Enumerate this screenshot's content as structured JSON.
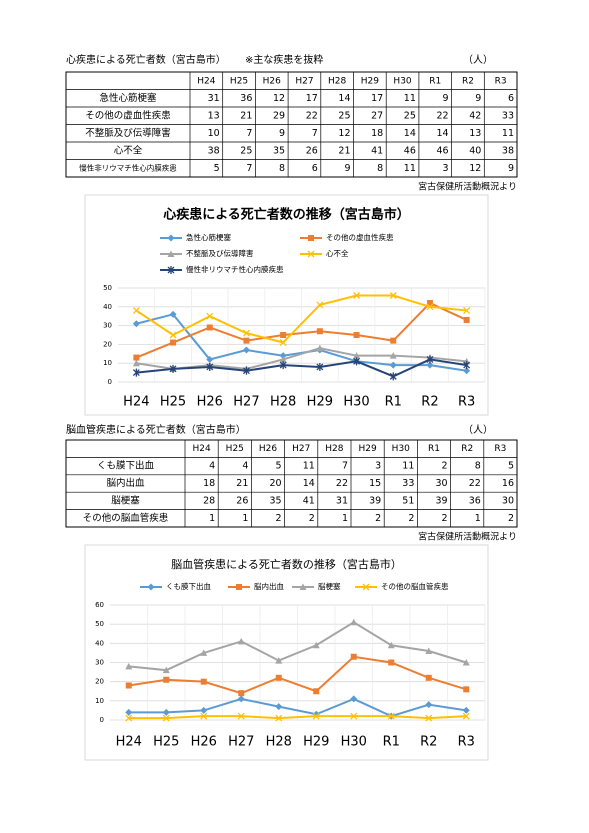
{
  "tables": [
    {
      "title": "心疾患による死亡者数（宮古島市）",
      "note": "※主な疾患を抜粋",
      "unit": "（人）",
      "columns": [
        "H24",
        "H25",
        "H26",
        "H27",
        "H28",
        "H29",
        "H30",
        "R1",
        "R2",
        "R3"
      ],
      "rows": [
        {
          "label": "急性心筋梗塞",
          "values": [
            31,
            36,
            12,
            17,
            14,
            17,
            11,
            9,
            9,
            6
          ]
        },
        {
          "label": "その他の虚血性疾患",
          "values": [
            13,
            21,
            29,
            22,
            25,
            27,
            25,
            22,
            42,
            33
          ]
        },
        {
          "label": "不整脈及び伝導障害",
          "values": [
            10,
            7,
            9,
            7,
            12,
            18,
            14,
            14,
            13,
            11
          ]
        },
        {
          "label": "心不全",
          "values": [
            38,
            25,
            35,
            26,
            21,
            41,
            46,
            46,
            40,
            38
          ]
        },
        {
          "label": "慢性非リウマチ性心内膜疾患",
          "values": [
            5,
            7,
            8,
            6,
            9,
            8,
            11,
            3,
            12,
            9
          ]
        }
      ],
      "source": "宮古保健所活動概況より"
    },
    {
      "title": "脳血管疾患による死亡者数（宮古島市）",
      "unit": "（人）",
      "columns": [
        "H24",
        "H25",
        "H26",
        "H27",
        "H28",
        "H29",
        "H30",
        "R1",
        "R2",
        "R3"
      ],
      "rows": [
        {
          "label": "くも膜下出血",
          "values": [
            4,
            4,
            5,
            11,
            7,
            3,
            11,
            2,
            8,
            5
          ]
        },
        {
          "label": "脳内出血",
          "values": [
            18,
            21,
            20,
            14,
            22,
            15,
            33,
            30,
            22,
            16
          ]
        },
        {
          "label": "脳梗塞",
          "values": [
            28,
            26,
            35,
            41,
            31,
            39,
            51,
            39,
            36,
            30
          ]
        },
        {
          "label": "その他の脳血管疾患",
          "values": [
            1,
            1,
            2,
            2,
            1,
            2,
            2,
            2,
            1,
            2
          ]
        }
      ],
      "source": "宮古保健所活動概況より"
    }
  ],
  "chart_data": [
    {
      "type": "line",
      "title": "心疾患による死亡者数の推移（宮古島市）",
      "categories": [
        "H24",
        "H25",
        "H26",
        "H27",
        "H28",
        "H29",
        "H30",
        "R1",
        "R2",
        "R3"
      ],
      "ylim": [
        0,
        50
      ],
      "yticks": [
        0,
        10,
        20,
        30,
        40,
        50
      ],
      "grid": true,
      "series": [
        {
          "name": "急性心筋梗塞",
          "color": "#5b9bd5",
          "marker": "diamond",
          "values": [
            31,
            36,
            12,
            17,
            14,
            17,
            11,
            9,
            9,
            6
          ]
        },
        {
          "name": "その他の虚血性疾患",
          "color": "#ed7d31",
          "marker": "square",
          "values": [
            13,
            21,
            29,
            22,
            25,
            27,
            25,
            22,
            42,
            33
          ]
        },
        {
          "name": "不整脈及び伝導障害",
          "color": "#a5a5a5",
          "marker": "triangle",
          "values": [
            10,
            7,
            9,
            7,
            12,
            18,
            14,
            14,
            13,
            11
          ]
        },
        {
          "name": "心不全",
          "color": "#ffc000",
          "marker": "x",
          "values": [
            38,
            25,
            35,
            26,
            21,
            41,
            46,
            46,
            40,
            38
          ]
        },
        {
          "name": "慢性非リウマチ性心内膜疾患",
          "color": "#264478",
          "marker": "star",
          "values": [
            5,
            7,
            8,
            6,
            9,
            8,
            11,
            3,
            12,
            9
          ]
        }
      ]
    },
    {
      "type": "line",
      "title": "脳血管疾患による死亡者数の推移（宮古島市）",
      "categories": [
        "H24",
        "H25",
        "H26",
        "H27",
        "H28",
        "H29",
        "H30",
        "R1",
        "R2",
        "R3"
      ],
      "ylim": [
        0,
        60
      ],
      "yticks": [
        0,
        10,
        20,
        30,
        40,
        50,
        60
      ],
      "grid": true,
      "series": [
        {
          "name": "くも膜下出血",
          "color": "#5b9bd5",
          "marker": "diamond",
          "values": [
            4,
            4,
            5,
            11,
            7,
            3,
            11,
            2,
            8,
            5
          ]
        },
        {
          "name": "脳内出血",
          "color": "#ed7d31",
          "marker": "square",
          "values": [
            18,
            21,
            20,
            14,
            22,
            15,
            33,
            30,
            22,
            16
          ]
        },
        {
          "name": "脳梗塞",
          "color": "#a5a5a5",
          "marker": "triangle",
          "values": [
            28,
            26,
            35,
            41,
            31,
            39,
            51,
            39,
            36,
            30
          ]
        },
        {
          "name": "その他の脳血管疾患",
          "color": "#ffc000",
          "marker": "x",
          "values": [
            1,
            1,
            2,
            2,
            1,
            2,
            2,
            2,
            1,
            2
          ]
        }
      ]
    }
  ]
}
